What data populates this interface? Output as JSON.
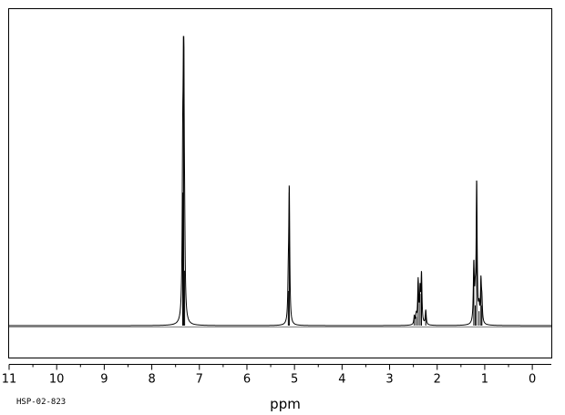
{
  "sample_id": "HSP-02-823",
  "chart_data": {
    "type": "line",
    "title": "",
    "xlabel": "ppm",
    "ylabel": "",
    "xlim": [
      11,
      -0.4
    ],
    "x_reversed": true,
    "ylim": [
      -0.1,
      1.0
    ],
    "grid": false,
    "legend": "none",
    "x_ticks": [
      11,
      10,
      9,
      8,
      7,
      6,
      5,
      4,
      3,
      2,
      1,
      0
    ],
    "tick_labels": [
      "11",
      "10",
      "9",
      "8",
      "7",
      "6",
      "5",
      "4",
      "3",
      "2",
      "1",
      "0"
    ],
    "peaks": [
      {
        "ppm": 7.33,
        "intensity": 1.0
      },
      {
        "ppm": 7.35,
        "intensity": 0.46
      },
      {
        "ppm": 7.31,
        "intensity": 0.19
      },
      {
        "ppm": 5.11,
        "intensity": 0.46
      },
      {
        "ppm": 5.13,
        "intensity": 0.12
      },
      {
        "ppm": 2.48,
        "intensity": 0.03
      },
      {
        "ppm": 2.44,
        "intensity": 0.03
      },
      {
        "ppm": 2.4,
        "intensity": 0.15
      },
      {
        "ppm": 2.36,
        "intensity": 0.11
      },
      {
        "ppm": 2.33,
        "intensity": 0.17
      },
      {
        "ppm": 2.24,
        "intensity": 0.05
      },
      {
        "ppm": 1.23,
        "intensity": 0.2
      },
      {
        "ppm": 1.2,
        "intensity": 0.07
      },
      {
        "ppm": 1.17,
        "intensity": 0.49
      },
      {
        "ppm": 1.12,
        "intensity": 0.05
      },
      {
        "ppm": 1.08,
        "intensity": 0.14
      },
      {
        "ppm": 1.06,
        "intensity": 0.07
      }
    ]
  }
}
